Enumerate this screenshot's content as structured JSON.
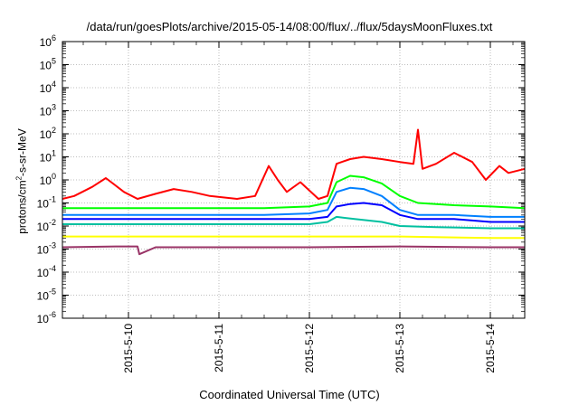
{
  "chart_data": {
    "type": "line",
    "title": "/data/run/goesPlots/archive/2015-05-14/08:00/flux/../flux/5daysMoonFluxes.txt",
    "xlabel": "Coordinated Universal Time (UTC)",
    "ylabel": {
      "prefix": "protons/cm",
      "sup": "2",
      "suffix": "-s-sr-MeV"
    },
    "yscale": "log",
    "ylim": [
      1e-06,
      1000000.0
    ],
    "y_tick_exponents": [
      -6,
      -5,
      -4,
      -3,
      -2,
      -1,
      0,
      1,
      2,
      3,
      4,
      5,
      6
    ],
    "y_tick_base": "10",
    "xlim": [
      9.27,
      14.38
    ],
    "x_ticks": [
      {
        "x": 10,
        "label": "2015-5-10"
      },
      {
        "x": 11,
        "label": "2015-5-11"
      },
      {
        "x": 12,
        "label": "2015-5-12"
      },
      {
        "x": 13,
        "label": "2015-5-13"
      },
      {
        "x": 14,
        "label": "2015-5-14"
      }
    ],
    "grid": true,
    "series": [
      {
        "color": "#ff0000",
        "x": [
          9.27,
          9.4,
          9.6,
          9.75,
          9.95,
          10.1,
          10.3,
          10.5,
          10.7,
          10.9,
          11.2,
          11.4,
          11.55,
          11.65,
          11.75,
          11.9,
          12.1,
          12.2,
          12.3,
          12.45,
          12.6,
          12.8,
          13.0,
          13.15,
          13.2,
          13.25,
          13.4,
          13.6,
          13.8,
          13.95,
          14.1,
          14.2,
          14.38
        ],
        "y": [
          0.15,
          0.2,
          0.5,
          1.2,
          0.3,
          0.15,
          0.25,
          0.4,
          0.3,
          0.2,
          0.15,
          0.2,
          4.0,
          1.0,
          0.3,
          0.8,
          0.15,
          0.2,
          5.0,
          8.0,
          10.0,
          8.0,
          6.0,
          5.0,
          150,
          3.0,
          5.0,
          15.0,
          6.0,
          1.0,
          4.0,
          2.0,
          3.0
        ]
      },
      {
        "color": "#00ff00",
        "x": [
          9.27,
          9.6,
          10.0,
          10.5,
          11.0,
          11.5,
          12.0,
          12.2,
          12.3,
          12.45,
          12.6,
          12.8,
          13.0,
          13.2,
          13.6,
          14.0,
          14.38
        ],
        "y": [
          0.06,
          0.06,
          0.06,
          0.06,
          0.06,
          0.06,
          0.07,
          0.1,
          0.8,
          1.5,
          1.3,
          0.7,
          0.2,
          0.1,
          0.08,
          0.07,
          0.06
        ]
      },
      {
        "color": "#0080ff",
        "x": [
          9.27,
          9.6,
          10.0,
          10.5,
          11.0,
          11.5,
          12.0,
          12.2,
          12.3,
          12.45,
          12.6,
          12.8,
          13.0,
          13.2,
          13.6,
          14.0,
          14.38
        ],
        "y": [
          0.03,
          0.03,
          0.03,
          0.03,
          0.03,
          0.03,
          0.035,
          0.05,
          0.3,
          0.45,
          0.4,
          0.2,
          0.05,
          0.03,
          0.03,
          0.025,
          0.025
        ]
      },
      {
        "color": "#0000ff",
        "x": [
          9.27,
          9.6,
          10.0,
          10.5,
          11.0,
          11.5,
          12.0,
          12.2,
          12.3,
          12.45,
          12.6,
          12.8,
          13.0,
          13.2,
          13.6,
          14.0,
          14.38
        ],
        "y": [
          0.02,
          0.02,
          0.02,
          0.02,
          0.02,
          0.02,
          0.02,
          0.025,
          0.07,
          0.09,
          0.1,
          0.08,
          0.03,
          0.02,
          0.02,
          0.015,
          0.015
        ]
      },
      {
        "color": "#00c0a0",
        "x": [
          9.27,
          9.6,
          10.0,
          10.5,
          11.0,
          11.5,
          12.0,
          12.2,
          12.3,
          12.5,
          12.8,
          13.0,
          13.4,
          14.0,
          14.38
        ],
        "y": [
          0.012,
          0.012,
          0.012,
          0.012,
          0.012,
          0.012,
          0.012,
          0.015,
          0.025,
          0.02,
          0.015,
          0.01,
          0.009,
          0.008,
          0.008
        ]
      },
      {
        "color": "#ffff00",
        "x": [
          9.27,
          10.0,
          11.0,
          12.0,
          13.0,
          14.0,
          14.38
        ],
        "y": [
          0.0035,
          0.0035,
          0.0035,
          0.0035,
          0.0035,
          0.003,
          0.003
        ]
      },
      {
        "color": "#993366",
        "x": [
          9.27,
          9.9,
          10.1,
          10.12,
          10.3,
          11.0,
          12.0,
          13.0,
          14.0,
          14.38
        ],
        "y": [
          0.0012,
          0.0013,
          0.0013,
          0.0006,
          0.0012,
          0.0012,
          0.0012,
          0.0013,
          0.0012,
          0.0012
        ]
      }
    ]
  }
}
